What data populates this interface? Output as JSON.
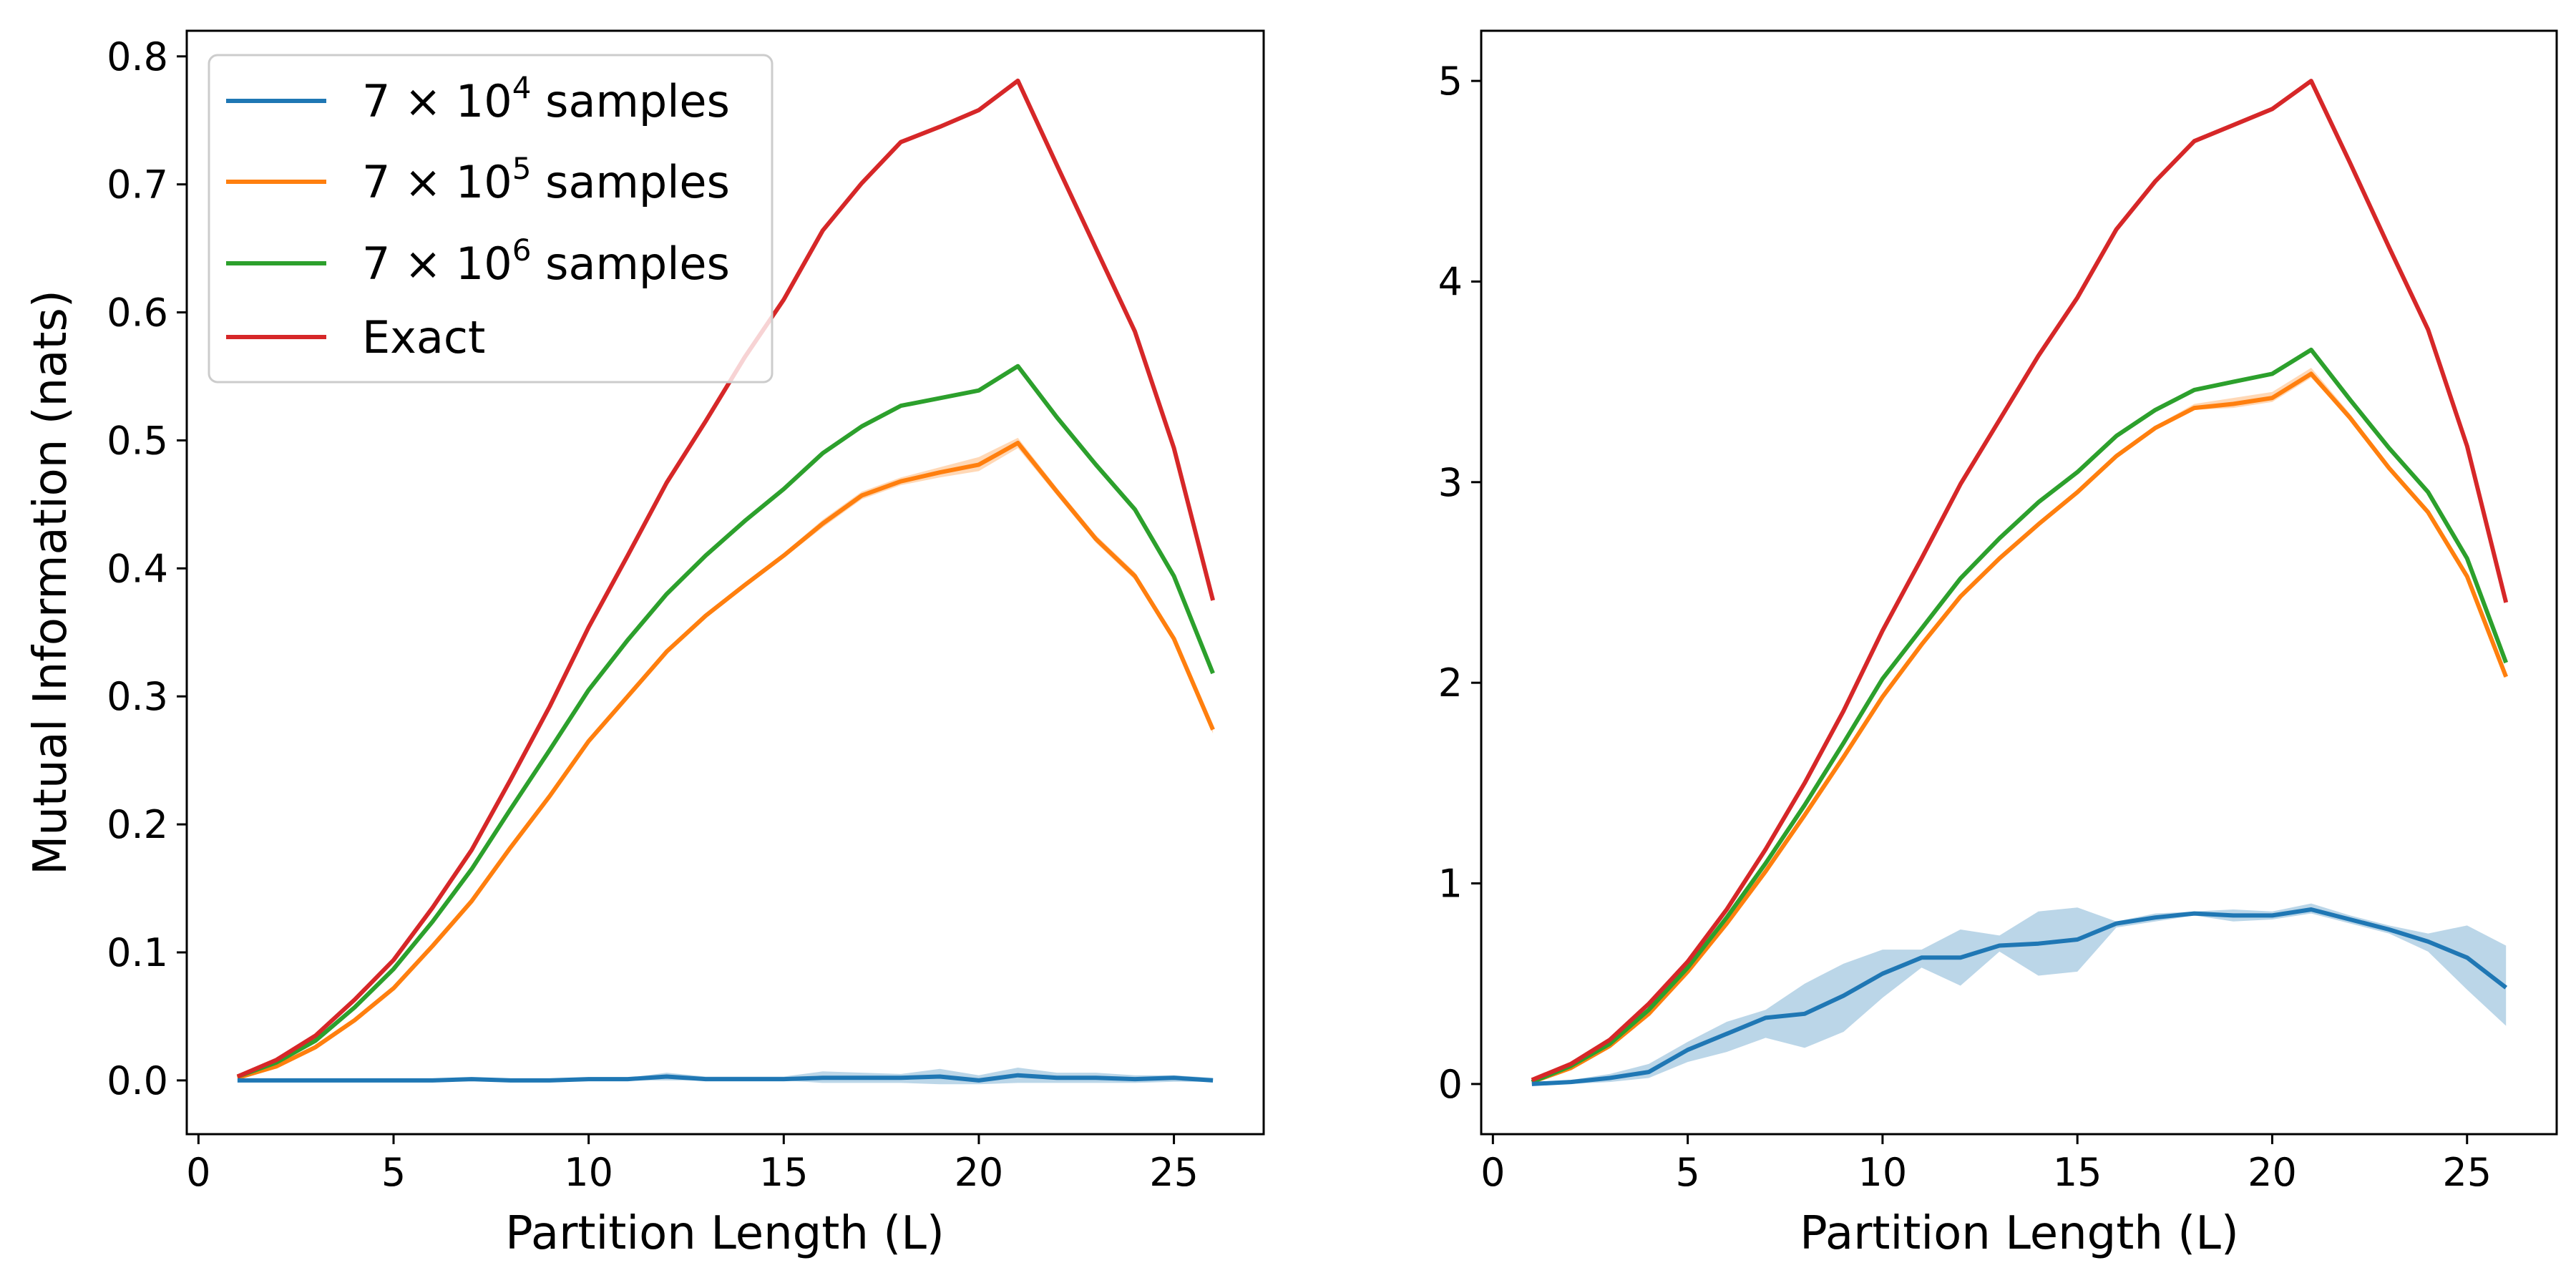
{
  "figure": {
    "left_ylabel": "Mutual Information (nats)",
    "legend": [
      {
        "pre": "7 × 10",
        "sup": "4",
        "post": " samples",
        "color": "#1f77b4"
      },
      {
        "pre": "7 × 10",
        "sup": "5",
        "post": " samples",
        "color": "#ff7f0e"
      },
      {
        "pre": "7 × 10",
        "sup": "6",
        "post": " samples",
        "color": "#2ca02c"
      },
      {
        "pre": "Exact",
        "sup": "",
        "post": "",
        "color": "#d62728"
      }
    ]
  },
  "chart_data": [
    {
      "type": "line",
      "xlabel": "Partition Length (L)",
      "ylabel": "Mutual Information (nats)",
      "xlim": [
        -0.3,
        27.3
      ],
      "ylim": [
        -0.042,
        0.82
      ],
      "xticks": [
        0,
        5,
        10,
        15,
        20,
        25
      ],
      "xtick_labels": [
        "0",
        "5",
        "10",
        "15",
        "20",
        "25"
      ],
      "yticks": [
        0.0,
        0.1,
        0.2,
        0.3,
        0.4,
        0.5,
        0.6,
        0.7,
        0.8
      ],
      "ytick_labels": [
        "0.0",
        "0.1",
        "0.2",
        "0.3",
        "0.4",
        "0.5",
        "0.6",
        "0.7",
        "0.8"
      ],
      "legend_position": "upper-left",
      "grid": false,
      "x": [
        1,
        2,
        3,
        4,
        5,
        6,
        7,
        8,
        9,
        10,
        11,
        12,
        13,
        14,
        15,
        16,
        17,
        18,
        19,
        20,
        21,
        22,
        23,
        24,
        25,
        26
      ],
      "series": [
        {
          "name": "7 × 10^4 samples",
          "color": "#1f77b4",
          "values": [
            0.0,
            0.0,
            0.0,
            0.0,
            0.0,
            0.0,
            0.001,
            0.0,
            0.0,
            0.001,
            0.001,
            0.003,
            0.001,
            0.001,
            0.001,
            0.002,
            0.002,
            0.002,
            0.003,
            0.0,
            0.004,
            0.002,
            0.002,
            0.001,
            0.002,
            0.0
          ],
          "band_lower": [
            0.0,
            0.0,
            0.0,
            0.0,
            0.0,
            0.0,
            0.0,
            0.0,
            0.0,
            0.0,
            0.0,
            0.0,
            0.0,
            0.0,
            0.0,
            -0.002,
            -0.002,
            -0.002,
            -0.003,
            -0.003,
            -0.002,
            -0.002,
            -0.002,
            -0.002,
            -0.001,
            -0.001
          ],
          "band_upper": [
            0.001,
            0.001,
            0.001,
            0.001,
            0.001,
            0.001,
            0.002,
            0.001,
            0.001,
            0.002,
            0.002,
            0.006,
            0.003,
            0.003,
            0.003,
            0.007,
            0.006,
            0.005,
            0.009,
            0.004,
            0.01,
            0.006,
            0.006,
            0.004,
            0.004,
            0.002
          ]
        },
        {
          "name": "7 × 10^5 samples",
          "color": "#ff7f0e",
          "values": [
            0.002,
            0.011,
            0.026,
            0.047,
            0.072,
            0.105,
            0.14,
            0.182,
            0.222,
            0.265,
            0.3,
            0.335,
            0.363,
            0.387,
            0.41,
            0.435,
            0.457,
            0.468,
            0.475,
            0.481,
            0.498,
            0.46,
            0.423,
            0.394,
            0.345,
            0.274
          ],
          "band_lower": [
            0.001,
            0.01,
            0.025,
            0.046,
            0.071,
            0.104,
            0.139,
            0.181,
            0.221,
            0.264,
            0.299,
            0.334,
            0.362,
            0.386,
            0.408,
            0.432,
            0.454,
            0.465,
            0.471,
            0.476,
            0.494,
            0.457,
            0.42,
            0.391,
            0.342,
            0.271
          ],
          "band_upper": [
            0.003,
            0.012,
            0.027,
            0.048,
            0.073,
            0.106,
            0.141,
            0.183,
            0.223,
            0.266,
            0.301,
            0.336,
            0.364,
            0.388,
            0.412,
            0.438,
            0.46,
            0.471,
            0.479,
            0.487,
            0.502,
            0.463,
            0.426,
            0.397,
            0.348,
            0.277
          ]
        },
        {
          "name": "7 × 10^6 samples",
          "color": "#2ca02c",
          "values": [
            0.003,
            0.014,
            0.031,
            0.057,
            0.087,
            0.124,
            0.165,
            0.212,
            0.258,
            0.305,
            0.344,
            0.38,
            0.41,
            0.437,
            0.462,
            0.49,
            0.511,
            0.527,
            0.533,
            0.539,
            0.558,
            0.518,
            0.481,
            0.446,
            0.394,
            0.318
          ],
          "band_lower": null,
          "band_upper": null
        },
        {
          "name": "Exact",
          "color": "#d62728",
          "values": [
            0.003,
            0.016,
            0.035,
            0.063,
            0.094,
            0.135,
            0.18,
            0.235,
            0.292,
            0.354,
            0.41,
            0.467,
            0.515,
            0.565,
            0.61,
            0.664,
            0.701,
            0.733,
            0.745,
            0.758,
            0.781,
            0.715,
            0.65,
            0.585,
            0.494,
            0.375
          ],
          "band_lower": null,
          "band_upper": null
        }
      ]
    },
    {
      "type": "line",
      "xlabel": "Partition Length (L)",
      "ylabel": "",
      "xlim": [
        -0.3,
        27.3
      ],
      "ylim": [
        -0.25,
        5.25
      ],
      "xticks": [
        0,
        5,
        10,
        15,
        20,
        25
      ],
      "xtick_labels": [
        "0",
        "5",
        "10",
        "15",
        "20",
        "25"
      ],
      "yticks": [
        0,
        1,
        2,
        3,
        4,
        5
      ],
      "ytick_labels": [
        "0",
        "1",
        "2",
        "3",
        "4",
        "5"
      ],
      "grid": false,
      "x": [
        1,
        2,
        3,
        4,
        5,
        6,
        7,
        8,
        9,
        10,
        11,
        12,
        13,
        14,
        15,
        16,
        17,
        18,
        19,
        20,
        21,
        22,
        23,
        24,
        25,
        26
      ],
      "series": [
        {
          "name": "7 × 10^4 samples",
          "color": "#1f77b4",
          "values": [
            0.0,
            0.01,
            0.03,
            0.06,
            0.17,
            0.25,
            0.33,
            0.35,
            0.44,
            0.55,
            0.63,
            0.63,
            0.69,
            0.7,
            0.72,
            0.8,
            0.83,
            0.85,
            0.84,
            0.84,
            0.87,
            0.82,
            0.77,
            0.71,
            0.63,
            0.48
          ],
          "band_lower": [
            0.0,
            0.0,
            0.01,
            0.03,
            0.11,
            0.16,
            0.23,
            0.18,
            0.26,
            0.43,
            0.58,
            0.49,
            0.66,
            0.54,
            0.56,
            0.78,
            0.81,
            0.84,
            0.81,
            0.82,
            0.85,
            0.8,
            0.75,
            0.66,
            0.47,
            0.29
          ],
          "band_upper": [
            0.01,
            0.02,
            0.05,
            0.1,
            0.21,
            0.31,
            0.37,
            0.5,
            0.6,
            0.67,
            0.67,
            0.77,
            0.74,
            0.86,
            0.88,
            0.81,
            0.85,
            0.86,
            0.87,
            0.86,
            0.9,
            0.84,
            0.79,
            0.75,
            0.79,
            0.69
          ]
        },
        {
          "name": "7 × 10^5 samples",
          "color": "#ff7f0e",
          "values": [
            0.01,
            0.08,
            0.19,
            0.35,
            0.56,
            0.8,
            1.06,
            1.34,
            1.63,
            1.93,
            2.19,
            2.43,
            2.62,
            2.79,
            2.95,
            3.13,
            3.27,
            3.37,
            3.39,
            3.42,
            3.54,
            3.32,
            3.07,
            2.85,
            2.53,
            2.03
          ],
          "band_lower": [
            0.01,
            0.08,
            0.19,
            0.35,
            0.56,
            0.8,
            1.06,
            1.34,
            1.63,
            1.93,
            2.19,
            2.43,
            2.62,
            2.79,
            2.95,
            3.12,
            3.26,
            3.36,
            3.37,
            3.4,
            3.52,
            3.31,
            3.06,
            2.84,
            2.52,
            2.02
          ],
          "band_upper": [
            0.01,
            0.08,
            0.19,
            0.35,
            0.56,
            0.8,
            1.06,
            1.34,
            1.63,
            1.93,
            2.19,
            2.43,
            2.62,
            2.79,
            2.95,
            3.14,
            3.28,
            3.39,
            3.42,
            3.45,
            3.57,
            3.34,
            3.08,
            2.86,
            2.54,
            2.04
          ]
        },
        {
          "name": "7 × 10^6 samples",
          "color": "#2ca02c",
          "values": [
            0.01,
            0.09,
            0.2,
            0.37,
            0.58,
            0.83,
            1.1,
            1.39,
            1.7,
            2.02,
            2.27,
            2.52,
            2.72,
            2.9,
            3.05,
            3.23,
            3.36,
            3.46,
            3.5,
            3.54,
            3.66,
            3.41,
            3.17,
            2.95,
            2.62,
            2.1
          ],
          "band_lower": null,
          "band_upper": null
        },
        {
          "name": "Exact",
          "color": "#d62728",
          "values": [
            0.02,
            0.1,
            0.22,
            0.4,
            0.61,
            0.87,
            1.17,
            1.5,
            1.86,
            2.26,
            2.62,
            2.99,
            3.31,
            3.63,
            3.92,
            4.26,
            4.5,
            4.7,
            4.78,
            4.86,
            5.0,
            4.59,
            4.17,
            3.76,
            3.18,
            2.4
          ],
          "band_lower": null,
          "band_upper": null
        }
      ]
    }
  ]
}
